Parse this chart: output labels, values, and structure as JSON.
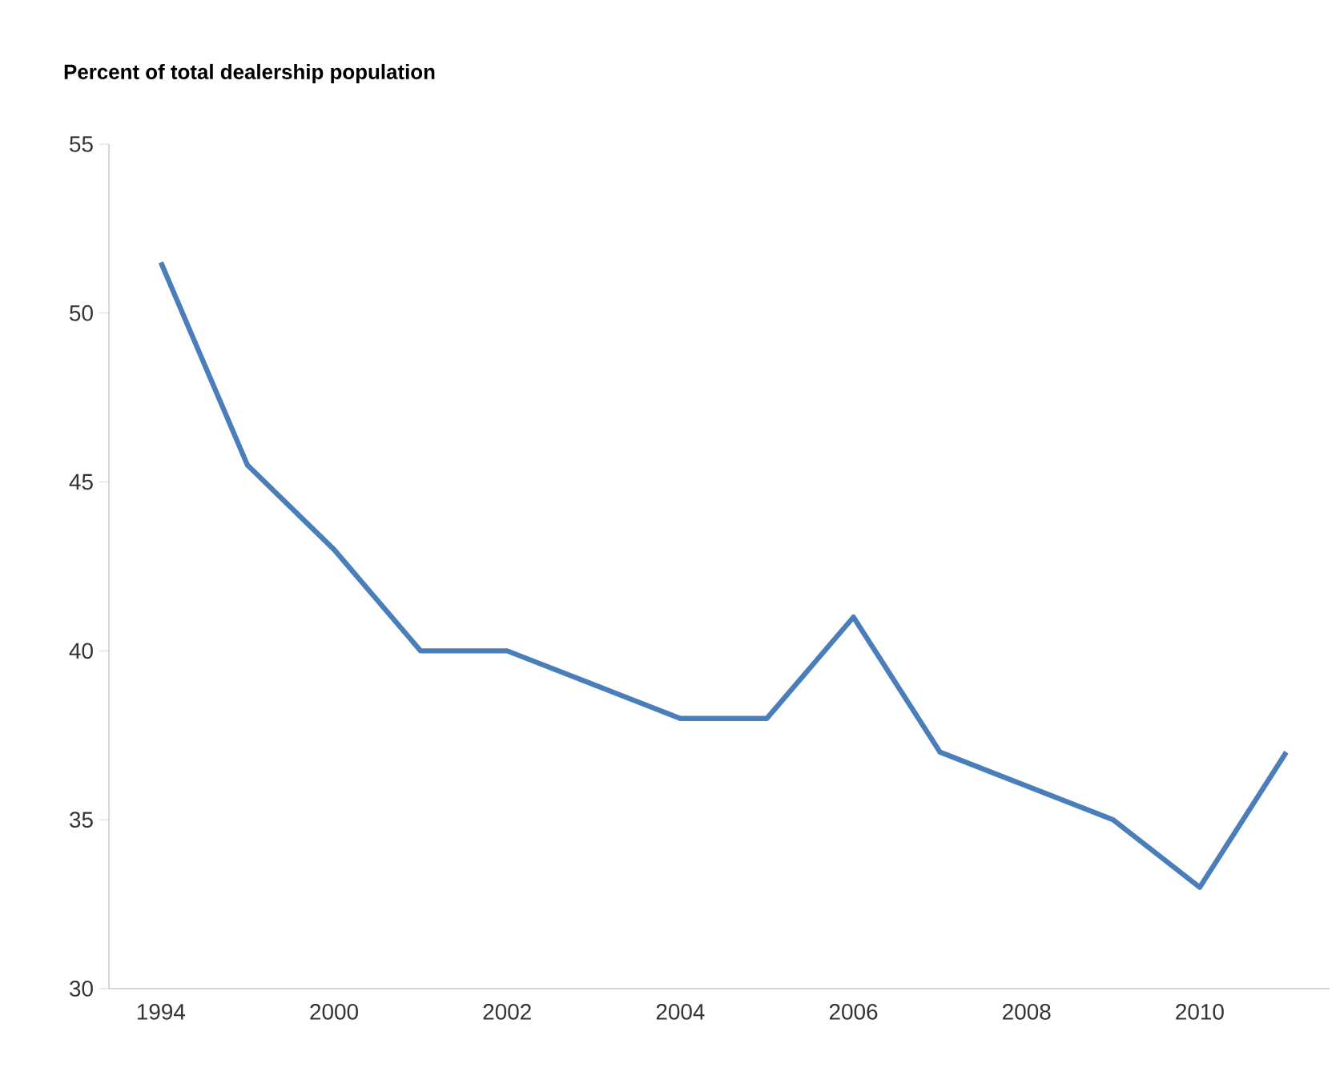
{
  "chart_data": {
    "type": "line",
    "ylabel": "Percent of total dealership population",
    "categories": [
      "1994",
      null,
      "2000",
      null,
      "2002",
      null,
      "2004",
      null,
      "2006",
      null,
      "2008",
      null,
      "2010",
      null
    ],
    "values": [
      51.5,
      45.5,
      43,
      40,
      40,
      39,
      38,
      38,
      41,
      37,
      36,
      35,
      33,
      37
    ],
    "color": "#4a7ebb",
    "ylim": [
      30,
      55
    ],
    "yticks": [
      30,
      35,
      40,
      45,
      50,
      55
    ],
    "grid": false,
    "marker": "none",
    "line_style": "solid"
  }
}
